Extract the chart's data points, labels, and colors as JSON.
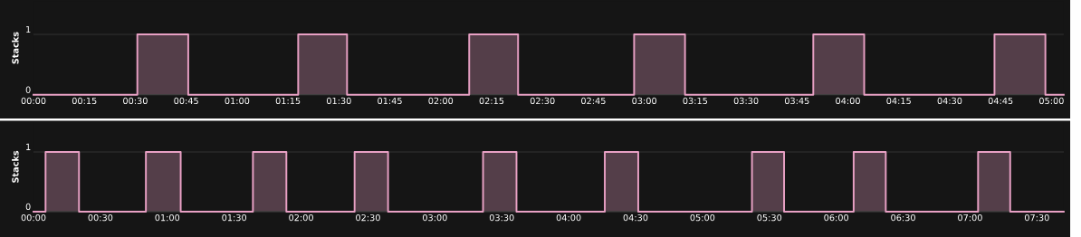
{
  "chart_data": [
    {
      "type": "step",
      "ylabel": "Stacks",
      "grid": "y",
      "xlim": [
        0,
        5.06
      ],
      "ylim": [
        0,
        1.55
      ],
      "yticks": [
        0,
        1
      ],
      "xticks": [
        {
          "value": 0,
          "label": "00:00"
        },
        {
          "value": 0.25,
          "label": "00:15"
        },
        {
          "value": 0.5,
          "label": "00:30"
        },
        {
          "value": 0.75,
          "label": "00:45"
        },
        {
          "value": 1,
          "label": "01:00"
        },
        {
          "value": 1.25,
          "label": "01:15"
        },
        {
          "value": 1.5,
          "label": "01:30"
        },
        {
          "value": 1.75,
          "label": "01:45"
        },
        {
          "value": 2,
          "label": "02:00"
        },
        {
          "value": 2.25,
          "label": "02:15"
        },
        {
          "value": 2.5,
          "label": "02:30"
        },
        {
          "value": 2.75,
          "label": "02:45"
        },
        {
          "value": 3,
          "label": "03:00"
        },
        {
          "value": 3.25,
          "label": "03:15"
        },
        {
          "value": 3.5,
          "label": "03:30"
        },
        {
          "value": 3.75,
          "label": "03:45"
        },
        {
          "value": 4,
          "label": "04:00"
        },
        {
          "value": 4.25,
          "label": "04:15"
        },
        {
          "value": 4.5,
          "label": "04:30"
        },
        {
          "value": 4.75,
          "label": "04:45"
        },
        {
          "value": 5,
          "label": "05:00"
        }
      ],
      "series": [
        {
          "color": "#e8a0c4",
          "x": [
            0,
            0.51,
            0.76,
            1.3,
            1.54,
            2.14,
            2.38,
            2.95,
            3.2,
            3.83,
            4.08,
            4.72,
            4.97,
            5.06
          ],
          "values": [
            0,
            1,
            0,
            1,
            0,
            1,
            0,
            1,
            0,
            1,
            0,
            1,
            0,
            0
          ]
        }
      ]
    },
    {
      "type": "step",
      "ylabel": "Stacks",
      "grid": "y",
      "xlim": [
        0,
        7.7
      ],
      "ylim": [
        0,
        1.5
      ],
      "yticks": [
        0,
        1
      ],
      "xticks": [
        {
          "value": 0,
          "label": "00:00"
        },
        {
          "value": 0.5,
          "label": "00:30"
        },
        {
          "value": 1,
          "label": "01:00"
        },
        {
          "value": 1.5,
          "label": "01:30"
        },
        {
          "value": 2,
          "label": "02:00"
        },
        {
          "value": 2.5,
          "label": "02:30"
        },
        {
          "value": 3,
          "label": "03:00"
        },
        {
          "value": 3.5,
          "label": "03:30"
        },
        {
          "value": 4,
          "label": "04:00"
        },
        {
          "value": 4.5,
          "label": "04:30"
        },
        {
          "value": 5,
          "label": "05:00"
        },
        {
          "value": 5.5,
          "label": "05:30"
        },
        {
          "value": 6,
          "label": "06:00"
        },
        {
          "value": 6.5,
          "label": "06:30"
        },
        {
          "value": 7,
          "label": "07:00"
        },
        {
          "value": 7.5,
          "label": "07:30"
        }
      ],
      "series": [
        {
          "color": "#e8a0c4",
          "x": [
            0,
            0.09,
            0.34,
            0.84,
            1.1,
            1.64,
            1.89,
            2.4,
            2.65,
            3.36,
            3.61,
            4.27,
            4.52,
            5.37,
            5.61,
            6.13,
            6.37,
            7.06,
            7.3,
            7.7
          ],
          "values": [
            0,
            1,
            0,
            1,
            0,
            1,
            0,
            1,
            0,
            1,
            0,
            1,
            0,
            1,
            0,
            1,
            0,
            1,
            0,
            0
          ]
        }
      ]
    }
  ]
}
